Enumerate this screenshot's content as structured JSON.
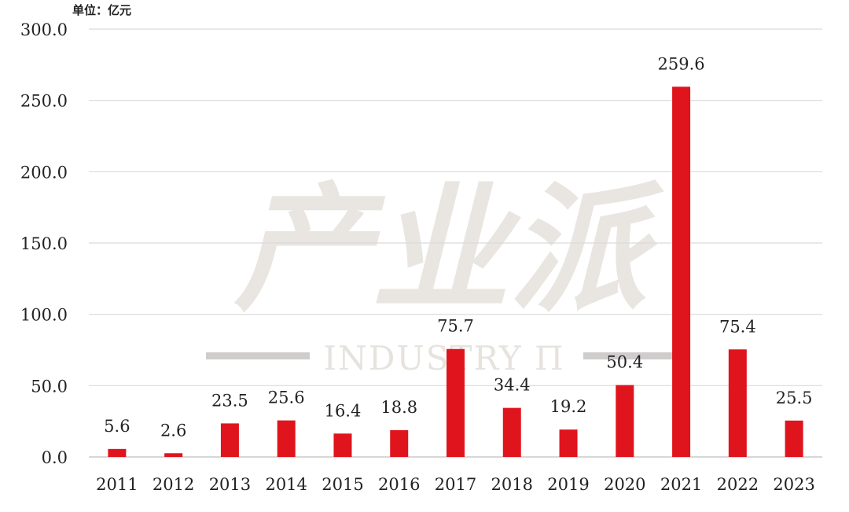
{
  "chart_data": {
    "type": "bar",
    "unit_label": "单位：亿元",
    "categories": [
      "2011",
      "2012",
      "2013",
      "2014",
      "2015",
      "2016",
      "2017",
      "2018",
      "2019",
      "2020",
      "2021",
      "2022",
      "2023"
    ],
    "values": [
      5.6,
      2.6,
      23.5,
      25.6,
      16.4,
      18.8,
      75.7,
      34.4,
      19.2,
      50.4,
      259.6,
      75.4,
      25.5
    ],
    "data_labels": [
      "5.6",
      "2.6",
      "23.5",
      "25.6",
      "16.4",
      "18.8",
      "75.7",
      "34.4",
      "19.2",
      "50.4",
      "259.6",
      "75.4",
      "25.5"
    ],
    "y_ticks": [
      0,
      50,
      100,
      150,
      200,
      250,
      300
    ],
    "y_tick_labels": [
      "0.0",
      "50.0",
      "100.0",
      "150.0",
      "200.0",
      "250.0",
      "300.0"
    ],
    "ylim": [
      0,
      300
    ],
    "grid": true,
    "legend": "none",
    "bar_color": "#e0141c",
    "grid_color": "#d9d9d9",
    "watermark": {
      "main": "产业派",
      "sub": "INDUSTRY Π"
    }
  }
}
